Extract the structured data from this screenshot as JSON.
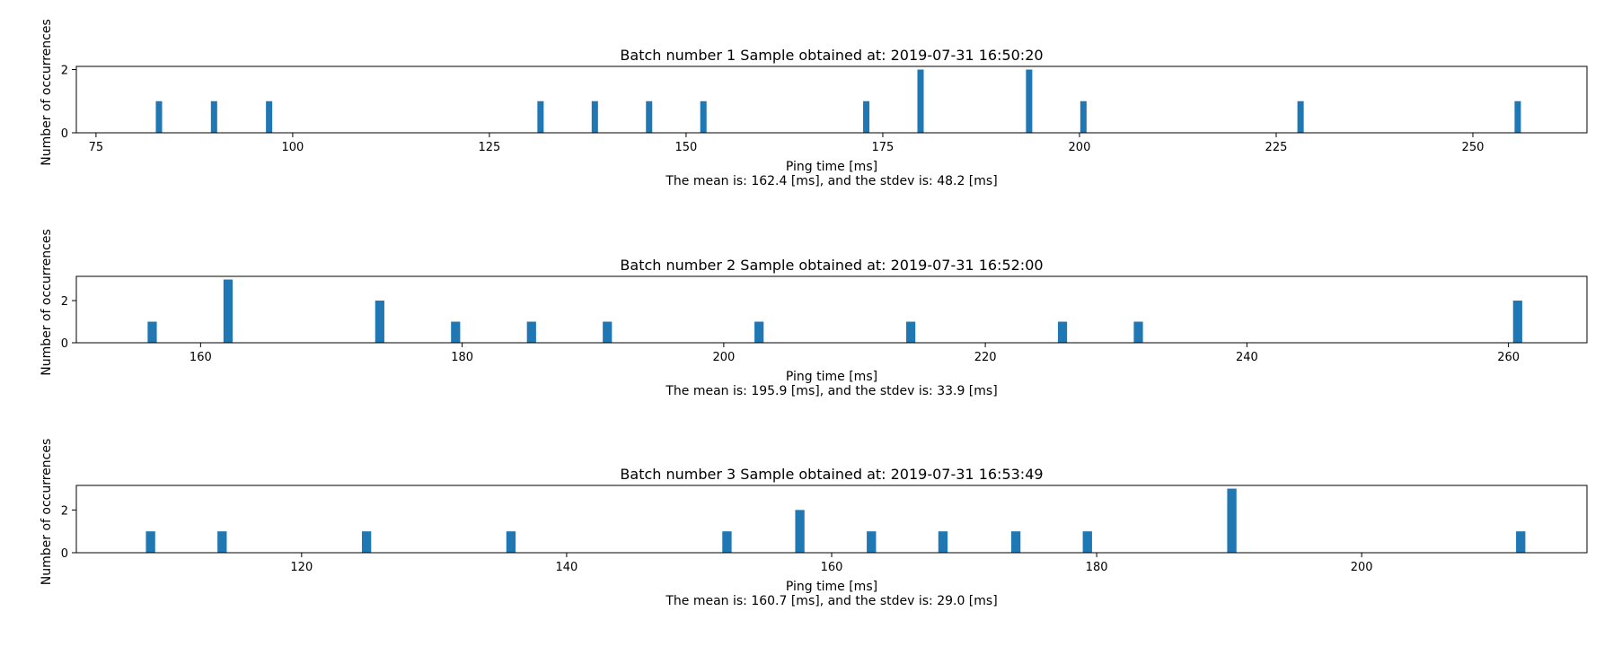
{
  "figure": {
    "background": "#ffffff",
    "bar_color": "#1f77b4"
  },
  "chart_data": [
    {
      "type": "bar",
      "title": "Batch number 1 Sample obtained at: 2019-07-31 16:50:20",
      "xlabel": "Ping time [ms]",
      "ylabel": "Number of occurrences",
      "caption": "The mean is: 162.4 [ms], and the stdev is: 48.2 [ms]",
      "xlim": [
        72.5,
        264.5
      ],
      "ylim": [
        0,
        2.1
      ],
      "xticks": [
        75,
        100,
        125,
        150,
        175,
        200,
        225,
        250
      ],
      "yticks": [
        0,
        2
      ],
      "bar_width": 0.8,
      "grid": false,
      "series": [
        {
          "x": [
            83,
            90,
            97,
            131.5,
            138.4,
            145.3,
            152.2,
            172.9,
            179.8,
            193.6,
            200.5,
            228.1,
            255.7
          ],
          "values": [
            1,
            1,
            1,
            1,
            1,
            1,
            1,
            1,
            2,
            2,
            1,
            1,
            1
          ]
        }
      ]
    },
    {
      "type": "bar",
      "title": "Batch number 2 Sample obtained at: 2019-07-31 16:52:00",
      "xlabel": "Ping time [ms]",
      "ylabel": "Number of occurrences",
      "caption": "The mean is: 195.9 [ms], and the stdev is: 33.9 [ms]",
      "xlim": [
        150.5,
        266
      ],
      "ylim": [
        0,
        3.15
      ],
      "xticks": [
        160,
        180,
        200,
        220,
        240,
        260
      ],
      "yticks": [
        0,
        2
      ],
      "bar_width": 0.7,
      "grid": false,
      "series": [
        {
          "x": [
            156.3,
            162.1,
            173.7,
            179.5,
            185.3,
            191.1,
            202.7,
            214.3,
            225.9,
            231.7,
            260.7
          ],
          "values": [
            1,
            3,
            2,
            1,
            1,
            1,
            1,
            1,
            1,
            1,
            2
          ]
        }
      ]
    },
    {
      "type": "bar",
      "title": "Batch number 3 Sample obtained at: 2019-07-31 16:53:49",
      "xlabel": "Ping time [ms]",
      "ylabel": "Number of occurrences",
      "caption": "The mean is: 160.7 [ms], and the stdev is: 29.0 [ms]",
      "xlim": [
        103,
        217
      ],
      "ylim": [
        0,
        3.15
      ],
      "xticks": [
        120,
        140,
        160,
        180,
        200
      ],
      "yticks": [
        0,
        2
      ],
      "bar_width": 0.7,
      "grid": false,
      "series": [
        {
          "x": [
            108.6,
            114,
            124.9,
            135.8,
            152.1,
            157.6,
            163,
            168.4,
            173.9,
            179.3,
            190.2,
            212
          ],
          "values": [
            1,
            1,
            1,
            1,
            1,
            2,
            1,
            1,
            1,
            1,
            3,
            1
          ]
        }
      ]
    }
  ]
}
